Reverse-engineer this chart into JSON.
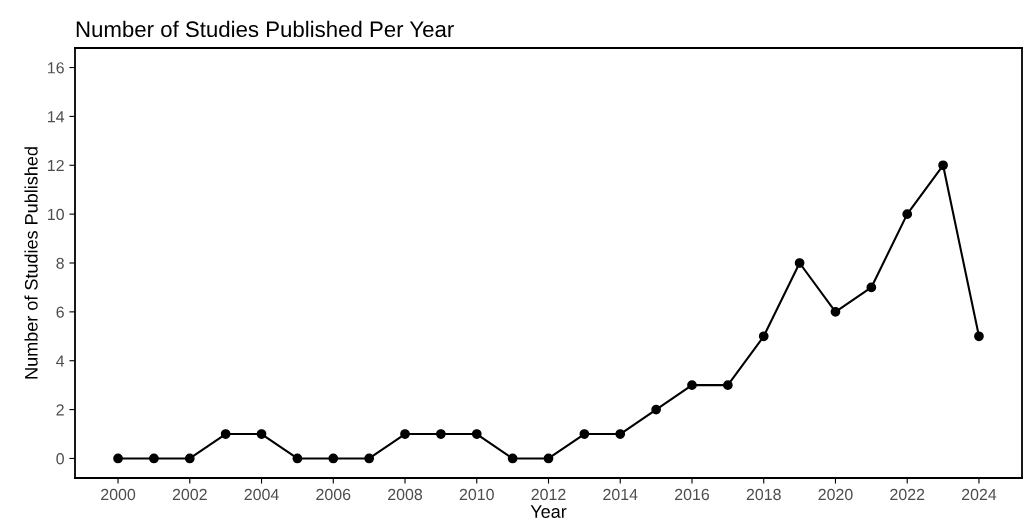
{
  "chart_data": {
    "type": "line",
    "title": "Number of Studies Published Per Year",
    "xlabel": "Year",
    "ylabel": "Number of Studies Published",
    "x": [
      2000,
      2001,
      2002,
      2003,
      2004,
      2005,
      2006,
      2007,
      2008,
      2009,
      2010,
      2011,
      2012,
      2013,
      2014,
      2015,
      2016,
      2017,
      2018,
      2019,
      2020,
      2021,
      2022,
      2023,
      2024
    ],
    "series": [
      {
        "color": "#000000",
        "values": [
          0,
          0,
          0,
          1,
          1,
          0,
          0,
          0,
          1,
          1,
          1,
          0,
          0,
          1,
          1,
          2,
          3,
          3,
          5,
          8,
          6,
          7,
          10,
          12,
          5
        ]
      }
    ],
    "xlim": [
      1998.8,
      2025.2
    ],
    "xticks": [
      2000,
      2002,
      2004,
      2006,
      2008,
      2010,
      2012,
      2014,
      2016,
      2018,
      2020,
      2022,
      2024
    ],
    "ylim": [
      -0.8,
      16.8
    ],
    "yticks": [
      0,
      2,
      4,
      6,
      8,
      10,
      12,
      14,
      16
    ],
    "grid": false,
    "marker": "circle",
    "line_style": "solid"
  }
}
